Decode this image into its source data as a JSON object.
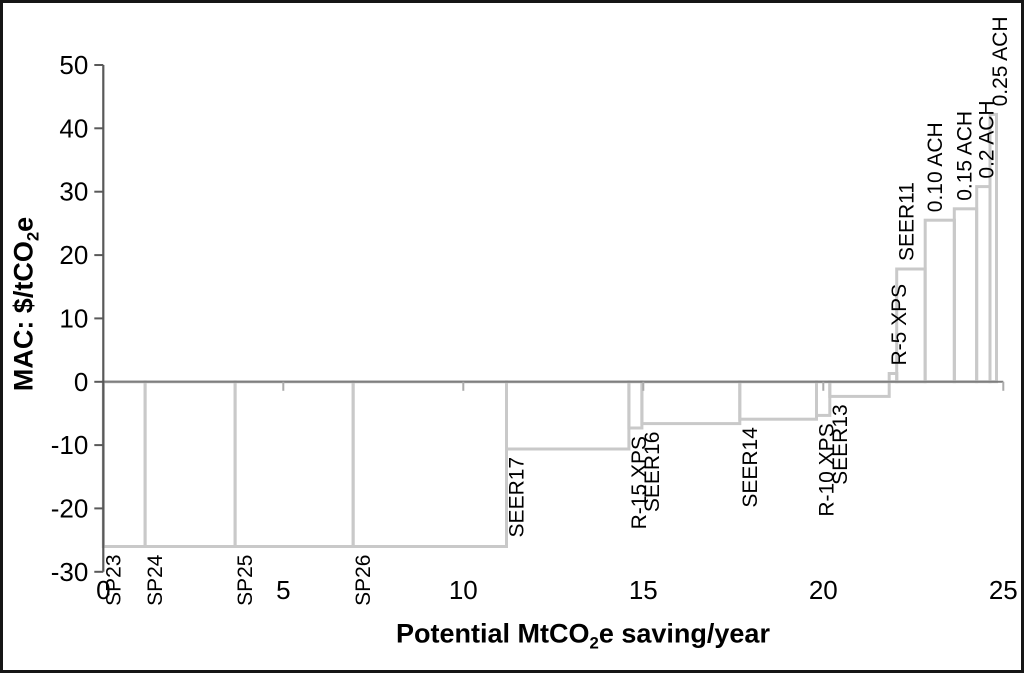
{
  "figure": {
    "background": "#ffffff",
    "border_color": "#161616"
  },
  "chart_data": {
    "type": "bar",
    "subtype": "marginal-abatement-cost-curve-outlined-steps",
    "title": "",
    "xlabel": {
      "pre": "Potential MtCO",
      "sub": "2",
      "post": "e saving/year"
    },
    "ylabel": {
      "pre": "MAC: $/tCO",
      "sub": "2",
      "post": "e"
    },
    "xlim": [
      0,
      25
    ],
    "ylim": [
      -30,
      50
    ],
    "x_ticks": [
      0,
      5,
      10,
      15,
      20,
      25
    ],
    "y_ticks": [
      50,
      40,
      30,
      20,
      10,
      0,
      -10,
      -20,
      -30
    ],
    "grid": false,
    "legend": "none",
    "colors": {
      "bar_stroke": "#c9c9c9",
      "y_axis": "#595959",
      "x_axis": "#7f7f7f",
      "x_tick": "#ababab",
      "text": "#000000"
    },
    "measures": [
      {
        "label": "SP23",
        "x0": 0.0,
        "x1": 1.16,
        "mac": -26.0
      },
      {
        "label": "SP24",
        "x0": 1.16,
        "x1": 3.66,
        "mac": -26.0
      },
      {
        "label": "SP25",
        "x0": 3.66,
        "x1": 6.94,
        "mac": -26.0
      },
      {
        "label": "SP26",
        "x0": 6.94,
        "x1": 11.2,
        "mac": -26.0
      },
      {
        "label": "SEER17",
        "x0": 11.2,
        "x1": 14.6,
        "mac": -10.6
      },
      {
        "label": "R-15 XPS",
        "x0": 14.6,
        "x1": 14.96,
        "mac": -7.3
      },
      {
        "label": "SEER16",
        "x0": 14.96,
        "x1": 17.68,
        "mac": -6.6
      },
      {
        "label": "SEER14",
        "x0": 17.68,
        "x1": 19.81,
        "mac": -5.9
      },
      {
        "label": "R-10 XPS",
        "x0": 19.81,
        "x1": 20.18,
        "mac": -5.3
      },
      {
        "label": "SEER13",
        "x0": 20.18,
        "x1": 21.83,
        "mac": -2.3
      },
      {
        "label": "R-5 XPS",
        "x0": 21.83,
        "x1": 22.04,
        "mac": 1.3
      },
      {
        "label": "SEER11",
        "x0": 22.04,
        "x1": 22.83,
        "mac": 17.8
      },
      {
        "label": "0.10 ACH",
        "x0": 22.83,
        "x1": 23.64,
        "mac": 25.5
      },
      {
        "label": "0.15 ACH",
        "x0": 23.64,
        "x1": 24.26,
        "mac": 27.3
      },
      {
        "label": "0.2 ACH",
        "x0": 24.26,
        "x1": 24.63,
        "mac": 30.8
      },
      {
        "label": "0.25 ACH",
        "x0": 24.63,
        "x1": 24.81,
        "mac": 42.2
      }
    ]
  }
}
